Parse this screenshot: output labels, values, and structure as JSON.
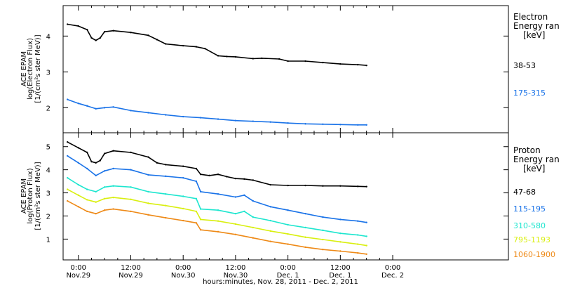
{
  "colors": {
    "background": "#ffffff",
    "axes": "#000000",
    "black": "#000000",
    "blue": "#1a73e8",
    "cyan": "#1ee6cf",
    "yellow": "#d9ef10",
    "orange": "#ee8a18"
  },
  "x_axis": {
    "title": "hours:minutes, Nov. 28, 2011 - Dec. 2, 2011",
    "range_hours": [
      -3.5,
      98.5
    ],
    "ticks": [
      {
        "time": "0:00",
        "date": "Nov.29",
        "hours": 0
      },
      {
        "time": "12:00",
        "date": "Nov.29",
        "hours": 12
      },
      {
        "time": "0:00",
        "date": "Nov.30",
        "hours": 24
      },
      {
        "time": "12:00",
        "date": "Nov.30",
        "hours": 36
      },
      {
        "time": "0:00",
        "date": "Dec. 1",
        "hours": 48
      },
      {
        "time": "12:00",
        "date": "Dec. 1",
        "hours": 60
      },
      {
        "time": "0:00",
        "date": "Dec. 2",
        "hours": 72
      }
    ]
  },
  "chart_data": [
    {
      "type": "line",
      "ylabel_lines": [
        "ACE EPAM",
        "log(Electron Flux)",
        "[1/(cm²s ster MeV)]"
      ],
      "ylim": [
        1.3,
        4.85
      ],
      "yticks": [
        2,
        3,
        4
      ],
      "legend_title": [
        "Electron",
        "Energy ran",
        "[keV]"
      ],
      "series": [
        {
          "name": "38-53",
          "color_key": "black",
          "x": [
            -2.5,
            0,
            2,
            3,
            4,
            5,
            6,
            8,
            12,
            16,
            18,
            20,
            24,
            27,
            29,
            32,
            34,
            36,
            40,
            42,
            46,
            48,
            52,
            56,
            60,
            64,
            66
          ],
          "y": [
            4.33,
            4.28,
            4.18,
            3.95,
            3.88,
            3.95,
            4.12,
            4.15,
            4.1,
            4.02,
            3.9,
            3.78,
            3.73,
            3.7,
            3.65,
            3.45,
            3.43,
            3.42,
            3.37,
            3.38,
            3.36,
            3.3,
            3.3,
            3.26,
            3.22,
            3.2,
            3.18
          ]
        },
        {
          "name": "175-315",
          "color_key": "blue",
          "x": [
            -2.5,
            0,
            2,
            4,
            6,
            8,
            12,
            16,
            20,
            24,
            28,
            32,
            36,
            40,
            44,
            48,
            52,
            56,
            60,
            64,
            66
          ],
          "y": [
            2.23,
            2.12,
            2.05,
            1.97,
            2.0,
            2.02,
            1.92,
            1.86,
            1.8,
            1.75,
            1.72,
            1.68,
            1.64,
            1.62,
            1.6,
            1.57,
            1.55,
            1.54,
            1.53,
            1.52,
            1.52
          ]
        }
      ]
    },
    {
      "type": "line",
      "ylabel_lines": [
        "ACE EPAM",
        "log(Proton Flux)",
        "[1/(cm²s ster MeV)]"
      ],
      "ylim": [
        0.1,
        5.6
      ],
      "yticks": [
        1,
        2,
        3,
        4,
        5
      ],
      "legend_title": [
        "Proton",
        "Energy ran",
        "[keV]"
      ],
      "series": [
        {
          "name": "47-68",
          "color_key": "black",
          "x": [
            -2.5,
            0,
            2,
            3,
            4,
            5,
            6,
            8,
            12,
            16,
            18,
            20,
            24,
            27,
            28,
            30,
            32,
            34,
            36,
            38,
            40,
            44,
            48,
            52,
            56,
            60,
            64,
            66
          ],
          "y": [
            5.2,
            4.95,
            4.75,
            4.35,
            4.3,
            4.4,
            4.7,
            4.82,
            4.75,
            4.55,
            4.3,
            4.22,
            4.15,
            4.05,
            3.8,
            3.75,
            3.8,
            3.7,
            3.62,
            3.6,
            3.55,
            3.35,
            3.32,
            3.32,
            3.3,
            3.3,
            3.28,
            3.27
          ]
        },
        {
          "name": "115-195",
          "color_key": "blue",
          "x": [
            -2.5,
            0,
            2,
            4,
            6,
            8,
            12,
            16,
            20,
            24,
            27,
            28,
            32,
            36,
            38,
            40,
            44,
            48,
            52,
            56,
            60,
            64,
            66
          ],
          "y": [
            4.6,
            4.3,
            4.05,
            3.75,
            3.95,
            4.05,
            4.0,
            3.78,
            3.72,
            3.65,
            3.5,
            3.05,
            2.95,
            2.82,
            2.9,
            2.65,
            2.4,
            2.25,
            2.1,
            1.95,
            1.85,
            1.78,
            1.72
          ]
        },
        {
          "name": "310-580",
          "color_key": "cyan",
          "x": [
            -2.5,
            0,
            2,
            4,
            6,
            8,
            12,
            16,
            20,
            24,
            27,
            28,
            32,
            36,
            38,
            40,
            44,
            48,
            52,
            56,
            60,
            64,
            66
          ],
          "y": [
            3.65,
            3.35,
            3.15,
            3.05,
            3.25,
            3.3,
            3.25,
            3.05,
            2.95,
            2.85,
            2.75,
            2.3,
            2.25,
            2.1,
            2.2,
            1.95,
            1.8,
            1.62,
            1.5,
            1.38,
            1.25,
            1.18,
            1.12
          ]
        },
        {
          "name": "795-1193",
          "color_key": "yellow",
          "x": [
            -2.5,
            0,
            2,
            4,
            6,
            8,
            12,
            16,
            20,
            24,
            27,
            28,
            32,
            36,
            40,
            44,
            48,
            52,
            56,
            60,
            64,
            66
          ],
          "y": [
            3.15,
            2.9,
            2.7,
            2.6,
            2.75,
            2.8,
            2.72,
            2.55,
            2.45,
            2.32,
            2.2,
            1.85,
            1.78,
            1.65,
            1.5,
            1.35,
            1.22,
            1.08,
            0.98,
            0.88,
            0.78,
            0.72
          ]
        },
        {
          "name": "1060-1900",
          "color_key": "orange",
          "x": [
            -2.5,
            0,
            2,
            4,
            6,
            8,
            12,
            16,
            20,
            24,
            27,
            28,
            32,
            36,
            40,
            44,
            48,
            52,
            56,
            60,
            64,
            66
          ],
          "y": [
            2.65,
            2.4,
            2.2,
            2.1,
            2.25,
            2.3,
            2.2,
            2.05,
            1.92,
            1.8,
            1.7,
            1.4,
            1.32,
            1.2,
            1.05,
            0.9,
            0.78,
            0.65,
            0.55,
            0.48,
            0.4,
            0.35
          ]
        }
      ]
    }
  ]
}
